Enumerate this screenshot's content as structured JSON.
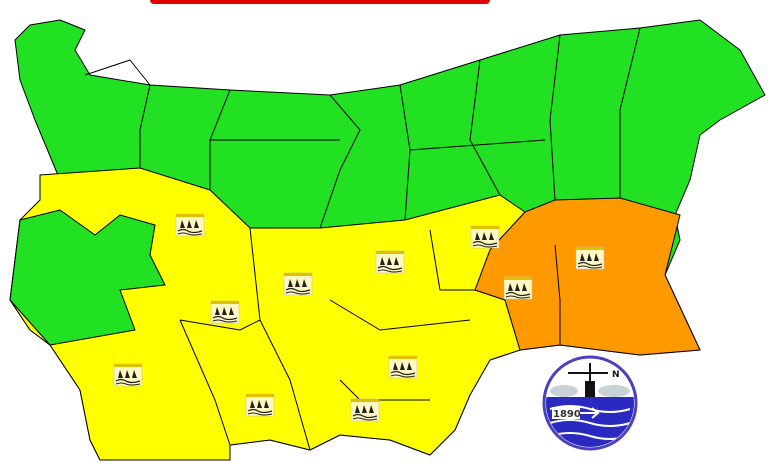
{
  "colors": {
    "no_warning": "#22e022",
    "yellow_warning": "#ffff00",
    "orange_warning": "#ff9900",
    "border": "#000000",
    "title": "#e00000"
  },
  "warning_icon": "rain-flood-icon",
  "logo": {
    "year": "1890",
    "compass_letter": "N"
  },
  "warning_regions": {
    "yellow_count": 9,
    "orange_count": 2,
    "icon_count": 11
  }
}
